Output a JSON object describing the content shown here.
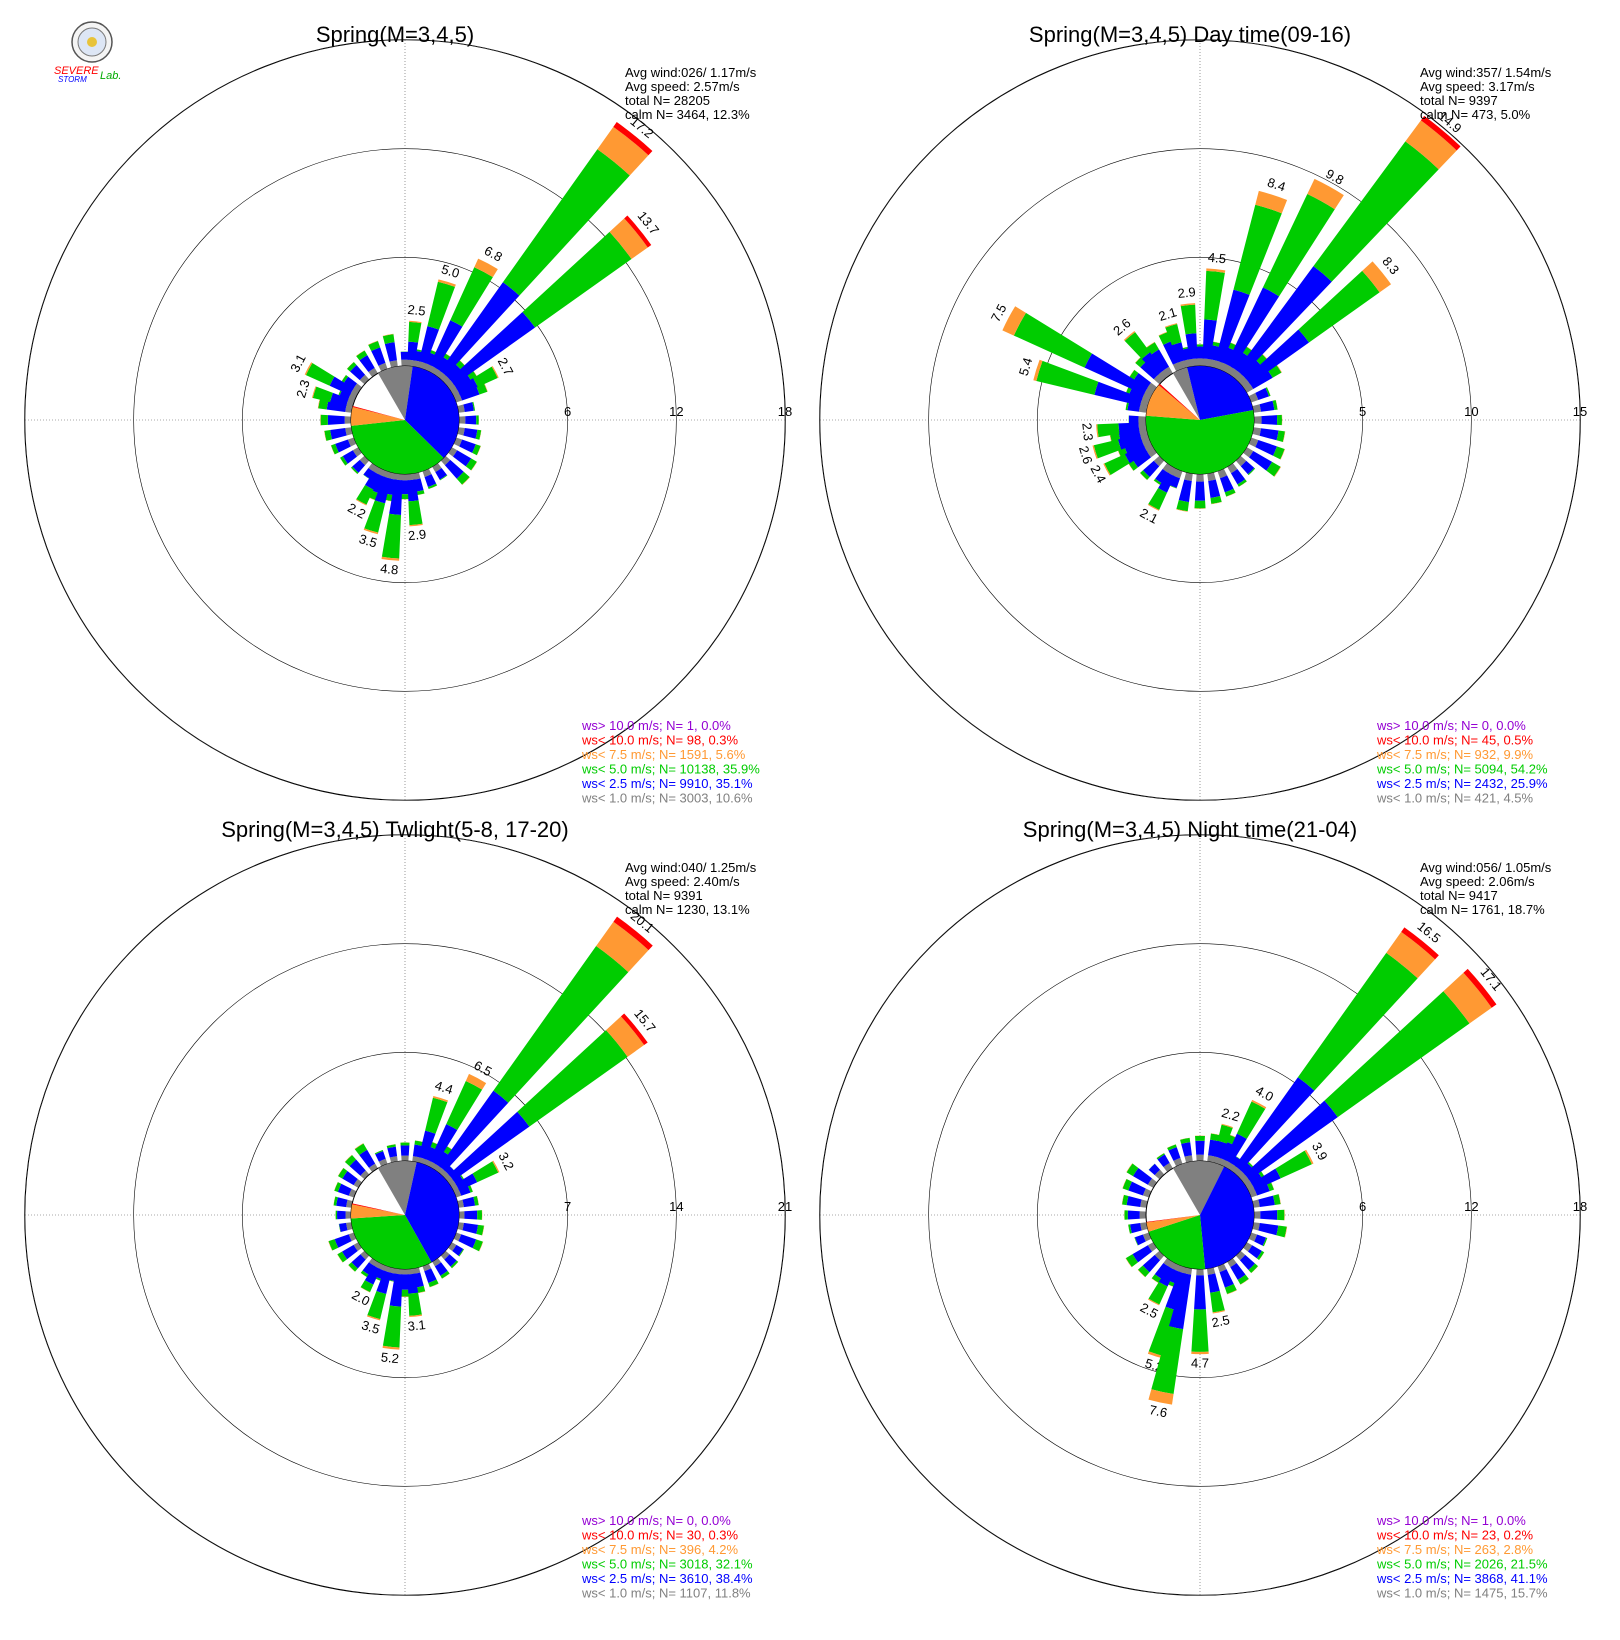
{
  "logo": {
    "text_top": "SEVERE",
    "text_mid": "STORM",
    "text_lab": "Lab."
  },
  "colors": {
    "gt10": "#9400d3",
    "lt10": "#ff0000",
    "lt75": "#ff9933",
    "lt5": "#00cc00",
    "lt25": "#0000ff",
    "lt1": "#808080",
    "grid": "#000000"
  },
  "chart_data": [
    {
      "type": "windrose",
      "title": "Spring(M=3,4,5)",
      "info": [
        "Avg wind:026/ 1.17m/s",
        "Avg speed: 2.57m/s",
        "total N=       28205",
        "calm N=  3464,  12.3%"
      ],
      "rmax": 18,
      "ring_ticks": [
        "6",
        "12",
        "18"
      ],
      "labeled_bars": [
        {
          "dir": 39,
          "label": "17.2"
        },
        {
          "dir": 51,
          "label": "13.7"
        },
        {
          "dir": 28,
          "label": "6.8"
        },
        {
          "dir": 17,
          "label": "5.0"
        },
        {
          "dir": 6,
          "label": "2.5"
        },
        {
          "dir": 62,
          "label": "2.7"
        },
        {
          "dir": 298,
          "label": "3.1"
        },
        {
          "dir": 287,
          "label": "2.3"
        },
        {
          "dir": 208,
          "label": "2.2"
        },
        {
          "dir": 197,
          "label": "3.5"
        },
        {
          "dir": 186,
          "label": "4.8"
        },
        {
          "dir": 174,
          "label": "2.9"
        }
      ],
      "calm_pie": [
        {
          "class": "lt1",
          "value": 10.6
        },
        {
          "class": "lt25",
          "value": 35.1
        },
        {
          "class": "lt5",
          "value": 35.9
        },
        {
          "class": "lt75",
          "value": 5.6
        },
        {
          "class": "lt10",
          "value": 0.3
        },
        {
          "class": "gt10",
          "value": 0.0
        }
      ],
      "legend": [
        {
          "class": "gt10",
          "text": "ws> 10.0 m/s; N=     1,  0.0%"
        },
        {
          "class": "lt10",
          "text": "ws< 10.0 m/s; N=    98,  0.3%"
        },
        {
          "class": "lt75",
          "text": "ws<  7.5 m/s; N=  1591,  5.6%"
        },
        {
          "class": "lt5",
          "text": "ws<  5.0 m/s; N= 10138, 35.9%"
        },
        {
          "class": "lt25",
          "text": "ws<  2.5 m/s; N=  9910, 35.1%"
        },
        {
          "class": "lt1",
          "text": "ws<  1.0 m/s; N=  3003, 10.6%"
        }
      ]
    },
    {
      "type": "windrose",
      "title": "Spring(M=3,4,5) Day time(09-16)",
      "info": [
        "Avg wind:357/ 1.54m/s",
        "Avg speed: 3.17m/s",
        "total N=        9397",
        "calm N=   473,   5.0%"
      ],
      "rmax": 15,
      "ring_ticks": [
        "5",
        "10",
        "15"
      ],
      "labeled_bars": [
        {
          "dir": 40,
          "label": "14.9"
        },
        {
          "dir": 29,
          "label": "9.8"
        },
        {
          "dir": 18,
          "label": "8.4"
        },
        {
          "dir": 51,
          "label": "8.3"
        },
        {
          "dir": 6,
          "label": "4.5"
        },
        {
          "dir": 354,
          "label": "2.9"
        },
        {
          "dir": 343,
          "label": "2.1"
        },
        {
          "dir": 320,
          "label": "2.6"
        },
        {
          "dir": 298,
          "label": "7.5"
        },
        {
          "dir": 287,
          "label": "5.4"
        },
        {
          "dir": 264,
          "label": "2.3"
        },
        {
          "dir": 253,
          "label": "2.6"
        },
        {
          "dir": 242,
          "label": "2.4"
        },
        {
          "dir": 208,
          "label": "2.1"
        }
      ],
      "calm_pie": [
        {
          "class": "lt1",
          "value": 4.5
        },
        {
          "class": "lt25",
          "value": 25.9
        },
        {
          "class": "lt5",
          "value": 54.2
        },
        {
          "class": "lt75",
          "value": 9.9
        },
        {
          "class": "lt10",
          "value": 0.5
        },
        {
          "class": "gt10",
          "value": 0.0
        }
      ],
      "legend": [
        {
          "class": "gt10",
          "text": "ws> 10.0 m/s; N=     0,  0.0%"
        },
        {
          "class": "lt10",
          "text": "ws< 10.0 m/s; N=    45,  0.5%"
        },
        {
          "class": "lt75",
          "text": "ws<  7.5 m/s; N=   932,  9.9%"
        },
        {
          "class": "lt5",
          "text": "ws<  5.0 m/s; N=  5094, 54.2%"
        },
        {
          "class": "lt25",
          "text": "ws<  2.5 m/s; N=  2432, 25.9%"
        },
        {
          "class": "lt1",
          "text": "ws<  1.0 m/s; N=   421,  4.5%"
        }
      ]
    },
    {
      "type": "windrose",
      "title": "Spring(M=3,4,5) Twlight(5-8, 17-20)",
      "info": [
        "Avg wind:040/ 1.25m/s",
        "Avg speed: 2.40m/s",
        "total N=        9391",
        "calm N=  1230,  13.1%"
      ],
      "rmax": 21,
      "ring_ticks": [
        "7",
        "14",
        "21"
      ],
      "labeled_bars": [
        {
          "dir": 39,
          "label": "20.1"
        },
        {
          "dir": 51,
          "label": "15.7"
        },
        {
          "dir": 28,
          "label": "6.5"
        },
        {
          "dir": 17,
          "label": "4.4"
        },
        {
          "dir": 62,
          "label": "3.2"
        },
        {
          "dir": 208,
          "label": "2.0"
        },
        {
          "dir": 197,
          "label": "3.5"
        },
        {
          "dir": 186,
          "label": "5.2"
        },
        {
          "dir": 174,
          "label": "3.1"
        }
      ],
      "calm_pie": [
        {
          "class": "lt1",
          "value": 11.8
        },
        {
          "class": "lt25",
          "value": 38.4
        },
        {
          "class": "lt5",
          "value": 32.1
        },
        {
          "class": "lt75",
          "value": 4.2
        },
        {
          "class": "lt10",
          "value": 0.3
        },
        {
          "class": "gt10",
          "value": 0.0
        }
      ],
      "legend": [
        {
          "class": "gt10",
          "text": "ws> 10.0 m/s; N=     0,  0.0%"
        },
        {
          "class": "lt10",
          "text": "ws< 10.0 m/s; N=    30,  0.3%"
        },
        {
          "class": "lt75",
          "text": "ws<  7.5 m/s; N=   396,  4.2%"
        },
        {
          "class": "lt5",
          "text": "ws<  5.0 m/s; N=  3018, 32.1%"
        },
        {
          "class": "lt25",
          "text": "ws<  2.5 m/s; N=  3610, 38.4%"
        },
        {
          "class": "lt1",
          "text": "ws<  1.0 m/s; N=  1107, 11.8%"
        }
      ]
    },
    {
      "type": "windrose",
      "title": "Spring(M=3,4,5) Night time(21-04)",
      "info": [
        "Avg wind:056/ 1.05m/s",
        "Avg speed: 2.06m/s",
        "total N=        9417",
        "calm N=  1761,  18.7%"
      ],
      "rmax": 18,
      "ring_ticks": [
        "6",
        "12",
        "18"
      ],
      "labeled_bars": [
        {
          "dir": 39,
          "label": "16.5"
        },
        {
          "dir": 51,
          "label": "17.1"
        },
        {
          "dir": 28,
          "label": "4.0"
        },
        {
          "dir": 17,
          "label": "2.2"
        },
        {
          "dir": 62,
          "label": "3.9"
        },
        {
          "dir": 208,
          "label": "2.5"
        },
        {
          "dir": 197,
          "label": "5.2"
        },
        {
          "dir": 192,
          "label": "7.6"
        },
        {
          "dir": 180,
          "label": "4.7"
        },
        {
          "dir": 169,
          "label": "2.5"
        }
      ],
      "calm_pie": [
        {
          "class": "lt1",
          "value": 15.7
        },
        {
          "class": "lt25",
          "value": 41.1
        },
        {
          "class": "lt5",
          "value": 21.5
        },
        {
          "class": "lt75",
          "value": 2.8
        },
        {
          "class": "lt10",
          "value": 0.2
        },
        {
          "class": "gt10",
          "value": 0.0
        }
      ],
      "legend": [
        {
          "class": "gt10",
          "text": "ws> 10.0 m/s; N=     1,  0.0%"
        },
        {
          "class": "lt10",
          "text": "ws< 10.0 m/s; N=    23,  0.2%"
        },
        {
          "class": "lt75",
          "text": "ws<  7.5 m/s; N=   263,  2.8%"
        },
        {
          "class": "lt5",
          "text": "ws<  5.0 m/s; N=  2026, 21.5%"
        },
        {
          "class": "lt25",
          "text": "ws<  2.5 m/s; N=  3868, 41.1%"
        },
        {
          "class": "lt1",
          "text": "ws<  1.0 m/s; N=  1475, 15.7%"
        }
      ]
    }
  ]
}
